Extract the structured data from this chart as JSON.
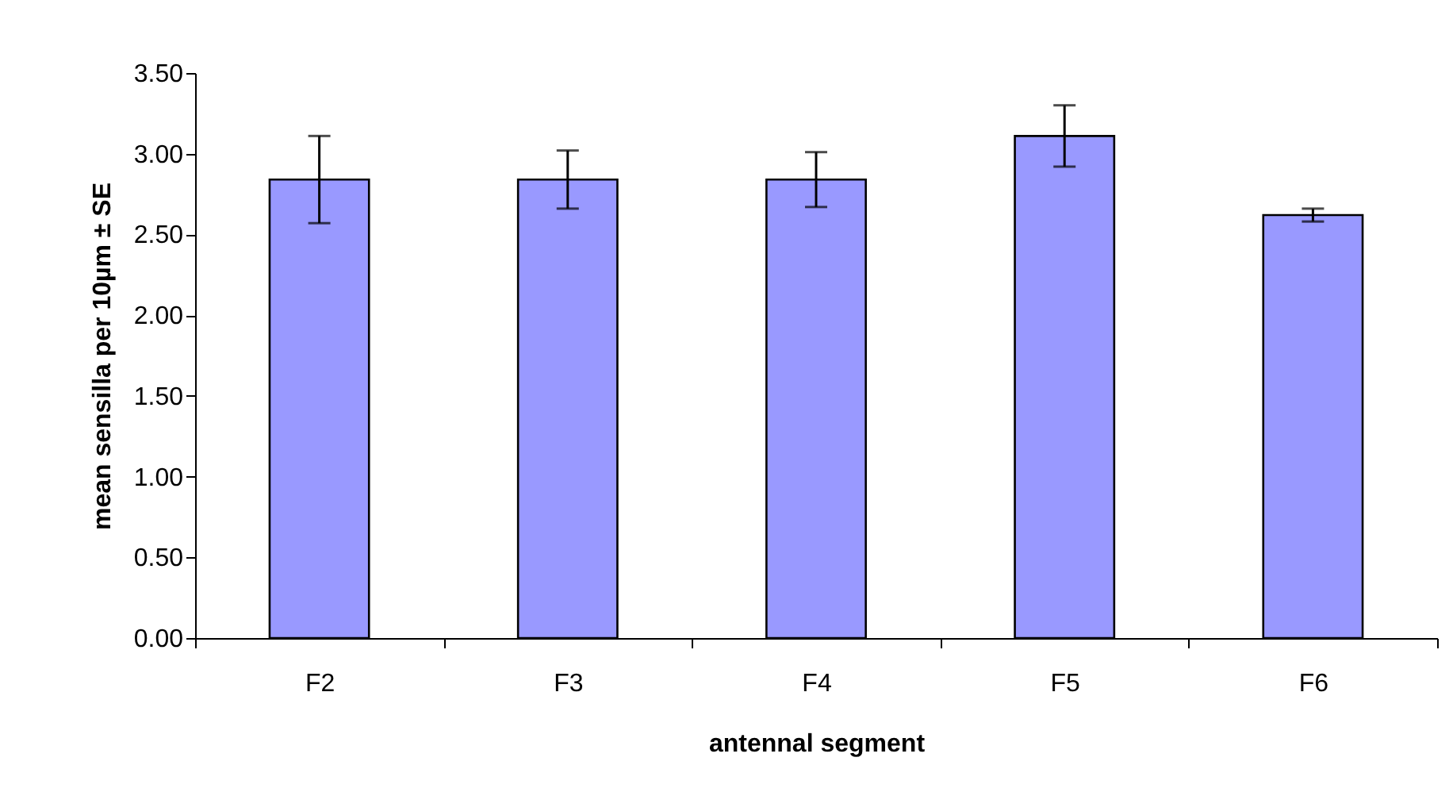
{
  "chart_data": {
    "type": "bar",
    "xlabel": "antennal segment",
    "ylabel": "mean sensilla per 10µm ± SE",
    "categories": [
      "F2",
      "F3",
      "F4",
      "F5",
      "F6"
    ],
    "values": [
      2.84,
      2.84,
      2.84,
      3.11,
      2.62
    ],
    "errors": [
      0.27,
      0.18,
      0.17,
      0.19,
      0.04
    ],
    "color": "#9999ff",
    "ylim": [
      0,
      3.5
    ],
    "yticks": [
      {
        "value": 0,
        "label": "0.00"
      },
      {
        "value": 0.5,
        "label": "0.50"
      },
      {
        "value": 1,
        "label": "1.00"
      },
      {
        "value": 1.5,
        "label": "1.50"
      },
      {
        "value": 2,
        "label": "2.00"
      },
      {
        "value": 2.5,
        "label": "2.50"
      },
      {
        "value": 3,
        "label": "3.00"
      },
      {
        "value": 3.5,
        "label": "3.50"
      }
    ],
    "grid": false
  }
}
